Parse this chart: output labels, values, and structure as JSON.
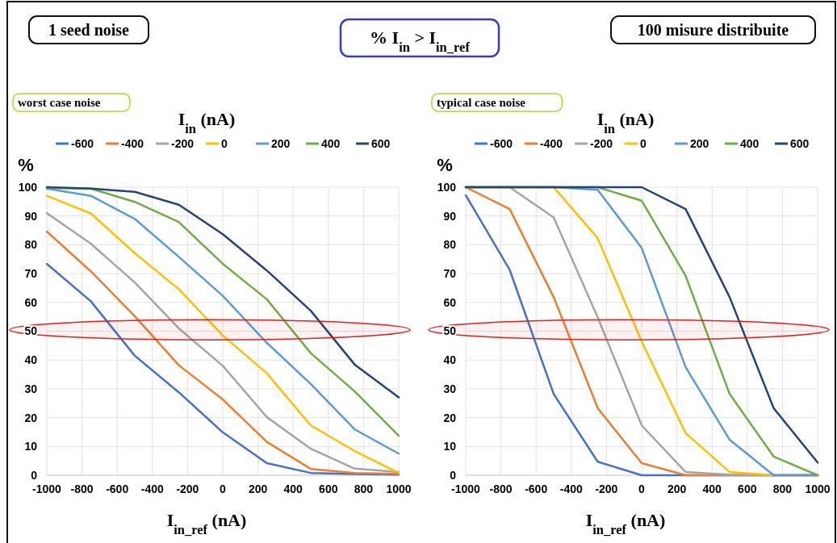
{
  "chart_data": [
    {
      "type": "line",
      "title": "% I$_{in}$ > I$_{in_ref}$",
      "subtitle": "worst case noise",
      "annotations": [
        "1 seed noise",
        "100 misure distribuite"
      ],
      "legend_title": "I$_{in}$ (nA)",
      "xlabel": "I$_{in_ref}$  (nA)",
      "ylabel": "%",
      "x": [
        -1000,
        -750,
        -500,
        -250,
        0,
        250,
        500,
        750,
        1000
      ],
      "xlim": [
        -1000,
        1000
      ],
      "xticks": [
        -1000,
        -800,
        -600,
        -400,
        -200,
        0,
        200,
        400,
        600,
        800,
        1000
      ],
      "ylim": [
        0,
        100
      ],
      "yticks": [
        0,
        10,
        20,
        30,
        40,
        50,
        60,
        70,
        80,
        90,
        100
      ],
      "grid": true,
      "legend": "top",
      "bands": [
        {
          "axis": "y",
          "from": 47,
          "to": 54,
          "color": "#e02020"
        }
      ],
      "series": [
        {
          "name": "-600",
          "color": "#4472c4",
          "values": [
            73.4,
            60.4,
            41.5,
            28.8,
            14.9,
            4.2,
            0.8,
            0.4,
            0.2
          ]
        },
        {
          "name": "-400",
          "color": "#ed7d31",
          "values": [
            84.6,
            70.8,
            55.2,
            38.2,
            26.3,
            11.6,
            2.2,
            0.8,
            0.5
          ]
        },
        {
          "name": "-200",
          "color": "#a5a5a5",
          "values": [
            91,
            80.4,
            66.9,
            51,
            38,
            20.2,
            9.2,
            2.3,
            1.1
          ]
        },
        {
          "name": "0",
          "color": "#ffc000",
          "values": [
            97,
            90.9,
            77.1,
            64.6,
            48.5,
            35.4,
            17.3,
            8.4,
            0.8
          ]
        },
        {
          "name": "200",
          "color": "#5b9bd5",
          "values": [
            99.5,
            97,
            89,
            75.8,
            62.3,
            46,
            31.7,
            15.9,
            7.5
          ]
        },
        {
          "name": "400",
          "color": "#70ad47",
          "values": [
            99.7,
            99.5,
            94.9,
            87.9,
            73.4,
            61.1,
            42.4,
            29.1,
            13.7
          ]
        },
        {
          "name": "600",
          "color": "#264478",
          "values": [
            100,
            99.5,
            98.4,
            93.9,
            83.7,
            71.1,
            57.1,
            38.4,
            27
          ]
        }
      ]
    },
    {
      "type": "line",
      "subtitle": "typical case noise",
      "legend_title": "I$_{in}$ (nA)",
      "xlabel": "I$_{in_ref}$  (nA)",
      "ylabel": "%",
      "x": [
        -1000,
        -750,
        -500,
        -250,
        0,
        250,
        500,
        750,
        1000
      ],
      "xlim": [
        -1000,
        1000
      ],
      "xticks": [
        -1000,
        -800,
        -600,
        -400,
        -200,
        0,
        200,
        400,
        600,
        800,
        1000
      ],
      "ylim": [
        0,
        100
      ],
      "yticks": [
        0,
        10,
        20,
        30,
        40,
        50,
        60,
        70,
        80,
        90,
        100
      ],
      "grid": true,
      "legend": "top",
      "bands": [
        {
          "axis": "y",
          "from": 47,
          "to": 54,
          "color": "#e02020"
        }
      ],
      "series": [
        {
          "name": "-600",
          "color": "#4472c4",
          "values": [
            97.2,
            71.3,
            28.2,
            4.7,
            0,
            0,
            0,
            0,
            0
          ]
        },
        {
          "name": "-400",
          "color": "#ed7d31",
          "values": [
            100,
            92.4,
            61.8,
            23.3,
            4.2,
            0,
            0,
            0,
            0
          ]
        },
        {
          "name": "-200",
          "color": "#a5a5a5",
          "values": [
            100,
            100,
            89.5,
            54.8,
            17.3,
            1.1,
            0.2,
            0,
            0
          ]
        },
        {
          "name": "0",
          "color": "#ffc000",
          "values": [
            100,
            100,
            100,
            82.3,
            46.4,
            14.6,
            1.1,
            0,
            0
          ]
        },
        {
          "name": "200",
          "color": "#5b9bd5",
          "values": [
            100,
            100,
            100,
            99.1,
            78.9,
            37.5,
            12.3,
            0,
            0
          ]
        },
        {
          "name": "400",
          "color": "#70ad47",
          "values": [
            100,
            100,
            100,
            100,
            95.3,
            69.2,
            28.2,
            6.5,
            0
          ]
        },
        {
          "name": "600",
          "color": "#264478",
          "values": [
            100,
            100,
            100,
            100,
            100,
            92.4,
            61.8,
            23.3,
            4.4
          ]
        }
      ]
    }
  ]
}
